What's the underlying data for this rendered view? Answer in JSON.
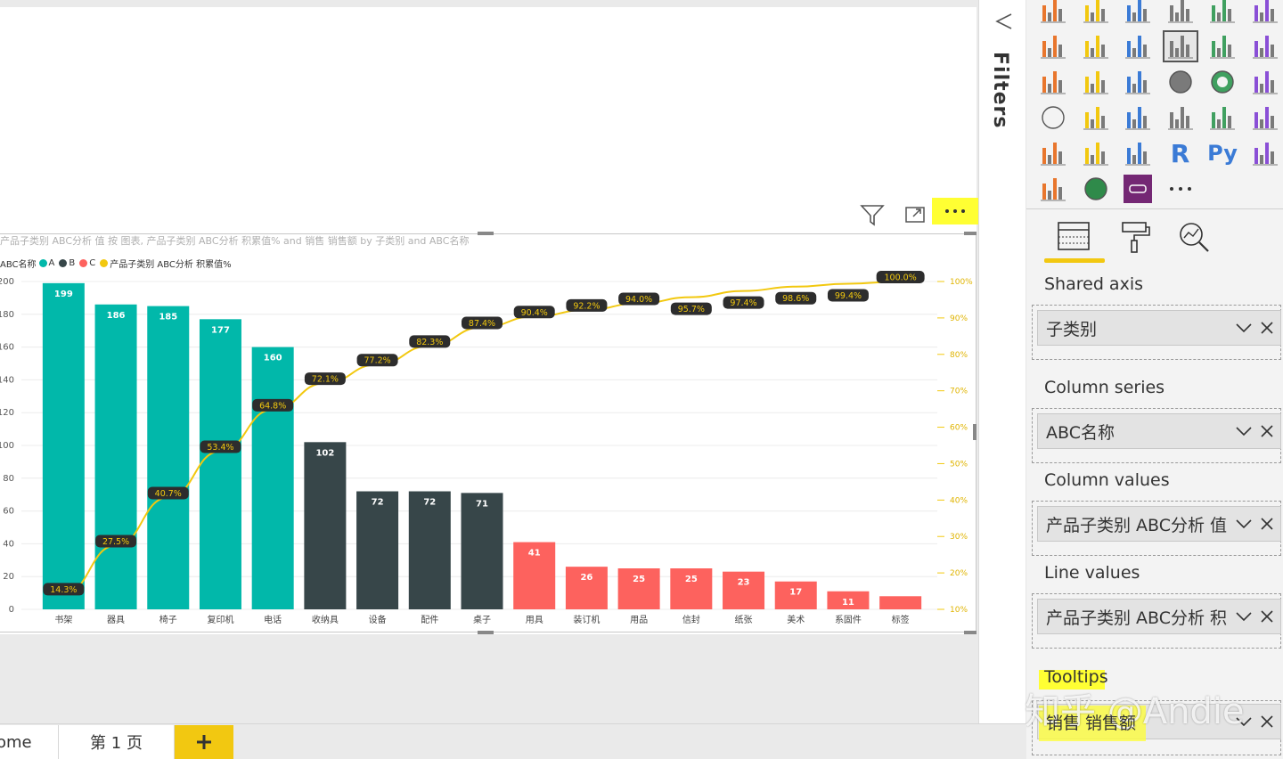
{
  "filters": {
    "label": "Filters"
  },
  "visual_header": {
    "filter_icon": "filter-icon",
    "focus_icon": "focus-mode-icon",
    "more_icon": "more-options-icon"
  },
  "chart_title": "产品子类别 ABC分析 值 按 图表, 产品子类别 ABC分析 积累值% and 销售 销售额 by 子类别 and ABC名称",
  "legend": {
    "title": "ABC名称",
    "items": [
      {
        "label": "A",
        "color": "#01B8AA"
      },
      {
        "label": "B",
        "color": "#374649"
      },
      {
        "label": "C",
        "color": "#FD625E"
      },
      {
        "label": "产品子类别 ABC分析 积累值%",
        "color": "#F2C80F"
      }
    ]
  },
  "chart_data": {
    "type": "bar",
    "categories": [
      "书架",
      "器具",
      "椅子",
      "复印机",
      "电话",
      "收纳具",
      "设备",
      "配件",
      "桌子",
      "用具",
      "装订机",
      "用品",
      "信封",
      "纸张",
      "美术",
      "系固件",
      "标签"
    ],
    "series": [
      {
        "name": "ABC名称",
        "values": [
          199,
          186,
          185,
          177,
          160,
          102,
          72,
          72,
          71,
          41,
          26,
          25,
          25,
          23,
          17,
          11,
          8
        ],
        "groups": [
          "A",
          "A",
          "A",
          "A",
          "A",
          "B",
          "B",
          "B",
          "B",
          "C",
          "C",
          "C",
          "C",
          "C",
          "C",
          "C",
          "C"
        ]
      },
      {
        "name": "产品子类别 ABC分析 积累值%",
        "type": "line",
        "values": [
          14.3,
          27.5,
          40.7,
          53.4,
          64.8,
          72.1,
          77.2,
          82.3,
          87.4,
          90.4,
          92.2,
          94.0,
          95.7,
          97.4,
          98.6,
          99.4,
          100.0
        ],
        "labels": [
          "14.3%",
          "27.5%",
          "40.7%",
          "53.4%",
          "64.8%",
          "72.1%",
          "77.2%",
          "82.3%",
          "87.4%",
          "90.4%",
          "92.2%",
          "94.0%",
          "95.7%",
          "97.4%",
          "98.6%",
          "99.4%",
          "100.0%"
        ]
      }
    ],
    "bar_labels": [
      "199",
      "186",
      "185",
      "177",
      "160",
      "102",
      "72",
      "72",
      "71",
      "41",
      "26",
      "25",
      "25",
      "23",
      "17",
      "11",
      ""
    ],
    "y_left": {
      "ticks": [
        "0",
        "20",
        "40",
        "60",
        "80",
        "100",
        "120",
        "140",
        "160",
        "180",
        "200"
      ],
      "range": [
        0,
        200
      ]
    },
    "y_right": {
      "ticks": [
        "10%",
        "20%",
        "30%",
        "40%",
        "50%",
        "60%",
        "70%",
        "80%",
        "90%",
        "100%"
      ],
      "range": [
        10,
        100
      ]
    },
    "group_colors": {
      "A": "#01B8AA",
      "B": "#374649",
      "C": "#FD625E"
    },
    "line_color": "#F2C80F",
    "grid": true
  },
  "viz_pane": {
    "icons": [
      "stacked-bar-icon",
      "stacked-column-icon",
      "clustered-bar-icon",
      "clustered-column-icon",
      "100-stacked-bar-icon",
      "100-stacked-column-icon",
      "line-chart-icon",
      "area-chart-icon",
      "stacked-area-icon",
      "line-column-icon",
      "line-clustered-column-icon",
      "ribbon-chart-icon",
      "waterfall-icon",
      "funnel-icon",
      "scatter-icon",
      "pie-icon",
      "donut-icon",
      "treemap-icon",
      "map-icon",
      "filled-map-icon",
      "gauge-icon",
      "card-icon",
      "multi-row-card-icon",
      "kpi-icon",
      "slicer-icon",
      "table-icon",
      "matrix-icon",
      "r-visual-icon",
      "python-visual-icon",
      "key-influencers-icon",
      "qa-icon",
      "arcgis-icon",
      "custom-visual-icon",
      "more-visuals-icon"
    ],
    "tabs": [
      "fields-tab-icon",
      "format-tab-icon",
      "analytics-tab-icon"
    ],
    "wells": [
      {
        "label": "Shared axis",
        "value": "子类别"
      },
      {
        "label": "Column series",
        "value": "ABC名称"
      },
      {
        "label": "Column values",
        "value": "产品子类别 ABC分析 值"
      },
      {
        "label": "Line values",
        "value": "产品子类别 ABC分析 积"
      },
      {
        "label": "Tooltips",
        "value": "销售 销售额"
      }
    ]
  },
  "watermark": "知乎 @Andie",
  "page_tabs": {
    "home": "ome",
    "page1": "第 1 页",
    "add": "+"
  }
}
